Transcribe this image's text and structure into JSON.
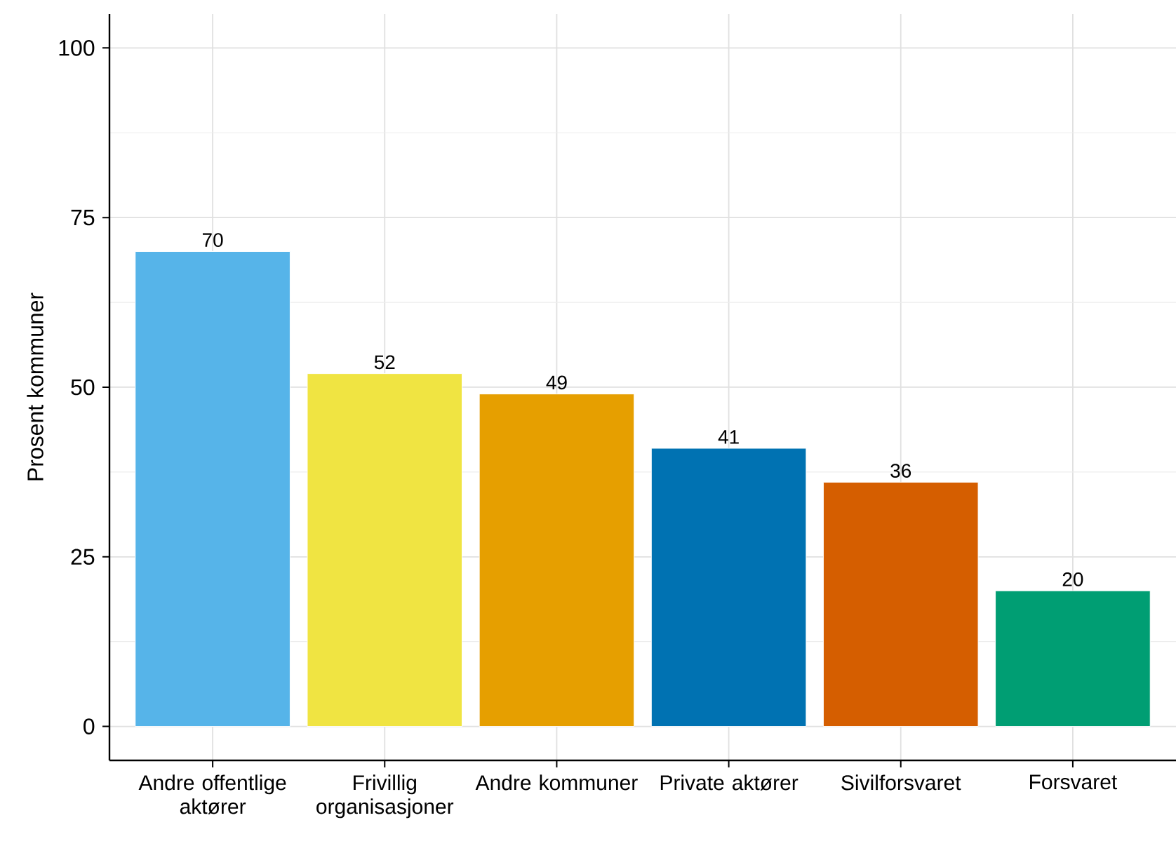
{
  "chart_data": {
    "type": "bar",
    "ylabel": "Prosent kommuner",
    "categories": [
      "Andre offentlige aktører",
      "Frivillig organisasjoner",
      "Andre kommuner",
      "Private aktører",
      "Sivilforsvaret",
      "Forsvaret"
    ],
    "values": [
      70,
      52,
      49,
      41,
      36,
      20
    ],
    "colors": [
      "#56b4e9",
      "#f0e442",
      "#e69f00",
      "#0072b2",
      "#d55e00",
      "#009e73"
    ],
    "ylim": [
      -5,
      105
    ],
    "yticks": [
      0,
      25,
      50,
      75,
      100
    ],
    "grid": true,
    "data_labels": true
  }
}
